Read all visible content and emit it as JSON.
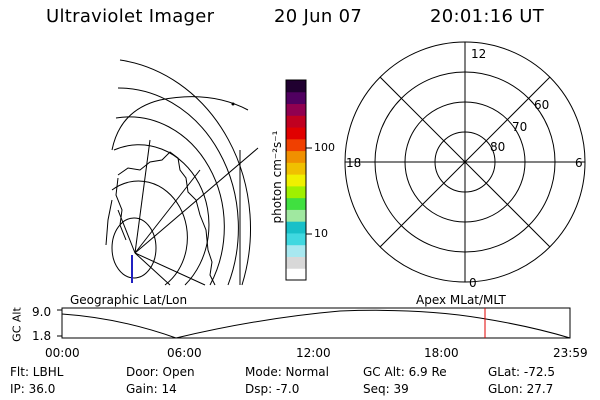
{
  "header": {
    "title": "Ultraviolet Imager",
    "date": "20 Jun 07",
    "time": "20:01:16 UT"
  },
  "colorbar": {
    "unit_label": "photon cm⁻²s⁻¹",
    "tick_100": "100",
    "tick_10": "10",
    "colors": [
      "#ffffff",
      "#d8d8d8",
      "#a8e8f0",
      "#40d8e0",
      "#18c0c8",
      "#a0e8a0",
      "#40e040",
      "#a0f000",
      "#f0f000",
      "#f0c000",
      "#f09000",
      "#f04000",
      "#e00000",
      "#c00020",
      "#900050",
      "#500060",
      "#200030"
    ]
  },
  "polar": {
    "label_12": "12",
    "label_18": "18",
    "label_6": "6",
    "label_0": "0",
    "label_60": "60",
    "label_70": "70",
    "label_80": "80"
  },
  "map_labels": {
    "left": "Geographic Lat/Lon",
    "right": "Apex MLat/MLT"
  },
  "altitude_plot": {
    "ylabel": "GC Alt",
    "y_top": "9.0",
    "y_bottom": "1.8",
    "x_ticks": [
      "00:00",
      "06:00",
      "12:00",
      "18:00",
      "23:59"
    ],
    "current_time_color": "#e00000"
  },
  "info": {
    "flt": "Flt: LBHL",
    "ip": "IP: 36.0",
    "door": "Door: Open",
    "gain": "Gain: 14",
    "mode": "Mode: Normal",
    "dsp": "Dsp:    -7.0",
    "gcalt": "GC Alt: 6.9 Re",
    "seq": "Seq: 39",
    "glat": "GLat:  -72.5",
    "glon": "GLon:  27.7"
  }
}
